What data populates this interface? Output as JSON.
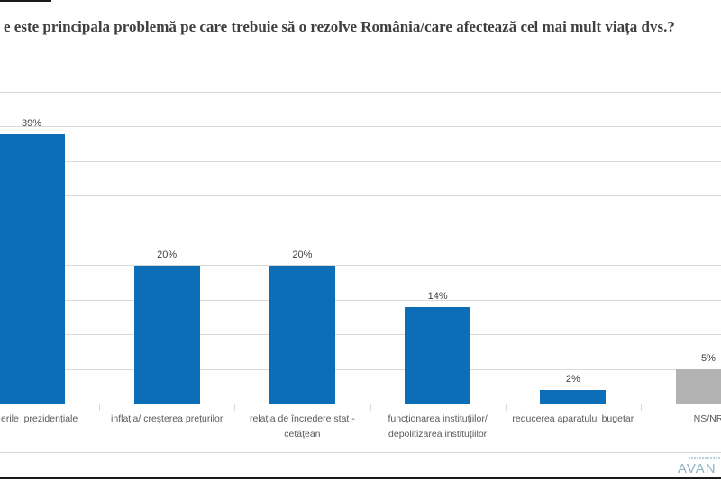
{
  "title": "e este principala problemă pe care trebuie să o rezolve România/care afectează cel mai mult viața dvs.?",
  "chart_data": {
    "type": "bar",
    "title": "e este principala problemă pe care trebuie să o rezolve România/care afectează cel mai mult viața dvs.?",
    "categories": [
      "erile  prezidențiale",
      "inflația/ creșterea prețurilor",
      "relația de încredere stat -\ncetățean",
      "funcționarea instituțiilor/\ndepolitizarea instituțiilor",
      "reducerea aparatului bugetar",
      "NS/NR"
    ],
    "values": [
      39,
      20,
      20,
      14,
      2,
      5
    ],
    "data_labels": [
      "39%",
      "20%",
      "20%",
      "14%",
      "2%",
      "5%"
    ],
    "bar_colors": [
      "#0d6eb8",
      "#0d6eb8",
      "#0d6eb8",
      "#0d6eb8",
      "#0d6eb8",
      "#b3b3b3"
    ],
    "ylim": [
      0,
      45
    ],
    "gridline_interval_pct": 5,
    "grid": true,
    "legend": false,
    "xlabel": "",
    "ylabel": ""
  },
  "logo": {
    "text": "AVAN"
  },
  "colors": {
    "bar_blue": "#0d6eb8",
    "bar_gray": "#b3b3b3",
    "gridline": "#d9d9d9",
    "axis_line": "#d9d9d9",
    "value_label": "#404040",
    "category_label": "#595959",
    "title_text": "#3f3f3f",
    "frame_line": "#1a1a1a",
    "logo_text": "#8fb3c7"
  }
}
